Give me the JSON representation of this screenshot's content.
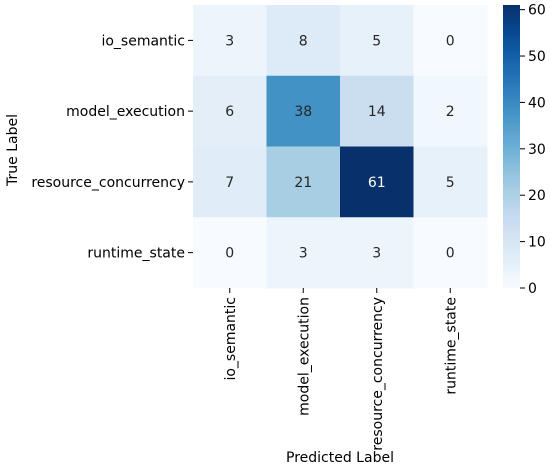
{
  "chart_data": {
    "type": "heatmap",
    "title": "",
    "xlabel": "Predicted Label",
    "ylabel": "True Label",
    "x_categories": [
      "io_semantic",
      "model_execution",
      "resource_concurrency",
      "runtime_state"
    ],
    "y_categories": [
      "io_semantic",
      "model_execution",
      "resource_concurrency",
      "runtime_state"
    ],
    "values": [
      [
        3,
        8,
        5,
        0
      ],
      [
        6,
        38,
        14,
        2
      ],
      [
        7,
        21,
        61,
        5
      ],
      [
        0,
        3,
        3,
        0
      ]
    ],
    "colormap": "Blues",
    "low_color": "#f7fbff",
    "high_color": "#08306b",
    "colorbar": {
      "min": 0,
      "max": 61,
      "ticks": [
        0,
        10,
        20,
        30,
        40,
        50,
        60
      ]
    }
  }
}
